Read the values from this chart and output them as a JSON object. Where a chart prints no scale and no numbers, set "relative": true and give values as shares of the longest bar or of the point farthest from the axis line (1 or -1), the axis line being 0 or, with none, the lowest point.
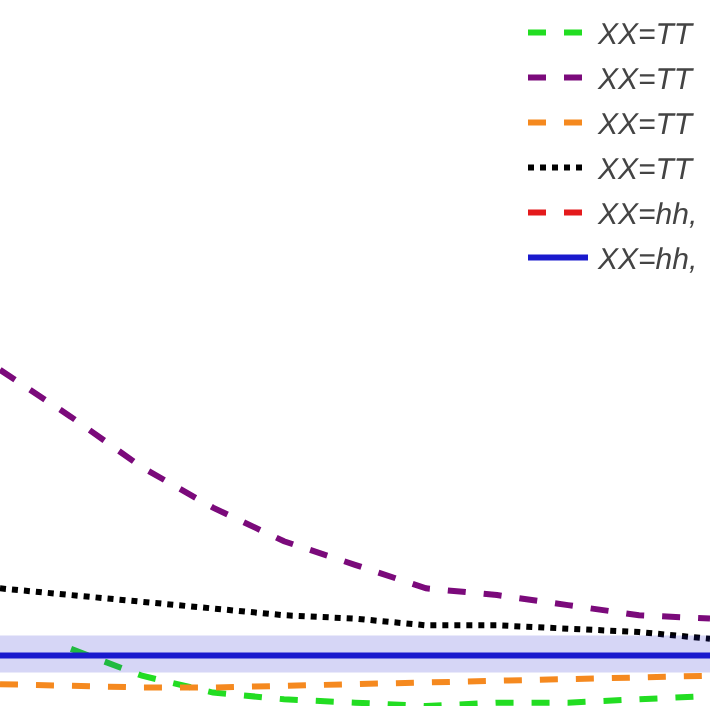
{
  "chart_data": {
    "type": "line",
    "relative": true,
    "legend": "top right",
    "categories": [
      null,
      null,
      null,
      null,
      null,
      null,
      null,
      null,
      null,
      null,
      null
    ],
    "series": [
      {
        "name": "XX=TT",
        "color": "#22dd22",
        "line_style": "dashed",
        "values": [
          null,
          0.17,
          0.09,
          0.04,
          0.02,
          0.01,
          0,
          0.01,
          0.01,
          0.02,
          0.03
        ]
      },
      {
        "name": "XX=TT",
        "color": "#7b0a7b",
        "line_style": "dashed",
        "values": [
          1,
          0.86,
          0.71,
          0.59,
          0.49,
          0.42,
          0.35,
          0.33,
          0.3,
          0.27,
          0.26
        ]
      },
      {
        "name": "XX=TT",
        "color": "#f5891f",
        "line_style": "dashed",
        "values": [
          0.065,
          0.06,
          0.055,
          0.055,
          0.06,
          0.065,
          0.07,
          0.075,
          0.08,
          0.085,
          0.09
        ]
      },
      {
        "name": "XX=TT",
        "color": "#000000",
        "line_style": "dotted",
        "values": [
          0.35,
          0.33,
          0.31,
          0.29,
          0.27,
          0.26,
          0.24,
          0.24,
          0.23,
          0.22,
          0.2
        ]
      },
      {
        "name": "XX=hh,",
        "color": "#e41a1c",
        "line_style": "dashed",
        "values": [
          null,
          null,
          null,
          null,
          null,
          null,
          null,
          null,
          null,
          null,
          null
        ]
      },
      {
        "name": "XX=hh,",
        "color": "#1a1acd",
        "line_style": "solid",
        "values": [
          0.15,
          0.15,
          0.15,
          0.15,
          0.15,
          0.15,
          0.15,
          0.15,
          0.15,
          0.15,
          0.15
        ],
        "lower": [
          0.1,
          0.1,
          0.1,
          0.1,
          0.1,
          0.1,
          0.1,
          0.1,
          0.1,
          0.1,
          0.1
        ],
        "upper": [
          0.21,
          0.21,
          0.21,
          0.21,
          0.21,
          0.21,
          0.21,
          0.21,
          0.21,
          0.21,
          0.21
        ]
      }
    ]
  }
}
